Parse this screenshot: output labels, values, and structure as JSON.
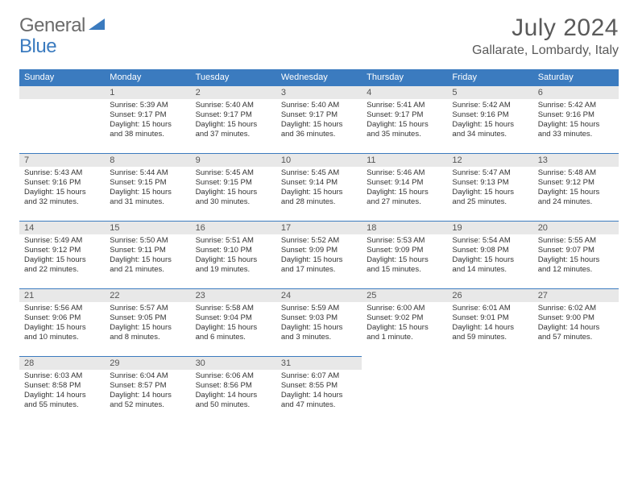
{
  "logo": {
    "general": "General",
    "blue": "Blue"
  },
  "title": "July 2024",
  "location": "Gallarate, Lombardy, Italy",
  "colors": {
    "header_bg": "#3b7bbf",
    "header_text": "#ffffff",
    "daynum_bg": "#e8e8e8",
    "daynum_border": "#3b7bbf",
    "body_text": "#333333",
    "title_text": "#5a5a5a"
  },
  "day_headers": [
    "Sunday",
    "Monday",
    "Tuesday",
    "Wednesday",
    "Thursday",
    "Friday",
    "Saturday"
  ],
  "weeks": [
    [
      null,
      {
        "n": "1",
        "sr": "Sunrise: 5:39 AM",
        "ss": "Sunset: 9:17 PM",
        "d1": "Daylight: 15 hours",
        "d2": "and 38 minutes."
      },
      {
        "n": "2",
        "sr": "Sunrise: 5:40 AM",
        "ss": "Sunset: 9:17 PM",
        "d1": "Daylight: 15 hours",
        "d2": "and 37 minutes."
      },
      {
        "n": "3",
        "sr": "Sunrise: 5:40 AM",
        "ss": "Sunset: 9:17 PM",
        "d1": "Daylight: 15 hours",
        "d2": "and 36 minutes."
      },
      {
        "n": "4",
        "sr": "Sunrise: 5:41 AM",
        "ss": "Sunset: 9:17 PM",
        "d1": "Daylight: 15 hours",
        "d2": "and 35 minutes."
      },
      {
        "n": "5",
        "sr": "Sunrise: 5:42 AM",
        "ss": "Sunset: 9:16 PM",
        "d1": "Daylight: 15 hours",
        "d2": "and 34 minutes."
      },
      {
        "n": "6",
        "sr": "Sunrise: 5:42 AM",
        "ss": "Sunset: 9:16 PM",
        "d1": "Daylight: 15 hours",
        "d2": "and 33 minutes."
      }
    ],
    [
      {
        "n": "7",
        "sr": "Sunrise: 5:43 AM",
        "ss": "Sunset: 9:16 PM",
        "d1": "Daylight: 15 hours",
        "d2": "and 32 minutes."
      },
      {
        "n": "8",
        "sr": "Sunrise: 5:44 AM",
        "ss": "Sunset: 9:15 PM",
        "d1": "Daylight: 15 hours",
        "d2": "and 31 minutes."
      },
      {
        "n": "9",
        "sr": "Sunrise: 5:45 AM",
        "ss": "Sunset: 9:15 PM",
        "d1": "Daylight: 15 hours",
        "d2": "and 30 minutes."
      },
      {
        "n": "10",
        "sr": "Sunrise: 5:45 AM",
        "ss": "Sunset: 9:14 PM",
        "d1": "Daylight: 15 hours",
        "d2": "and 28 minutes."
      },
      {
        "n": "11",
        "sr": "Sunrise: 5:46 AM",
        "ss": "Sunset: 9:14 PM",
        "d1": "Daylight: 15 hours",
        "d2": "and 27 minutes."
      },
      {
        "n": "12",
        "sr": "Sunrise: 5:47 AM",
        "ss": "Sunset: 9:13 PM",
        "d1": "Daylight: 15 hours",
        "d2": "and 25 minutes."
      },
      {
        "n": "13",
        "sr": "Sunrise: 5:48 AM",
        "ss": "Sunset: 9:12 PM",
        "d1": "Daylight: 15 hours",
        "d2": "and 24 minutes."
      }
    ],
    [
      {
        "n": "14",
        "sr": "Sunrise: 5:49 AM",
        "ss": "Sunset: 9:12 PM",
        "d1": "Daylight: 15 hours",
        "d2": "and 22 minutes."
      },
      {
        "n": "15",
        "sr": "Sunrise: 5:50 AM",
        "ss": "Sunset: 9:11 PM",
        "d1": "Daylight: 15 hours",
        "d2": "and 21 minutes."
      },
      {
        "n": "16",
        "sr": "Sunrise: 5:51 AM",
        "ss": "Sunset: 9:10 PM",
        "d1": "Daylight: 15 hours",
        "d2": "and 19 minutes."
      },
      {
        "n": "17",
        "sr": "Sunrise: 5:52 AM",
        "ss": "Sunset: 9:09 PM",
        "d1": "Daylight: 15 hours",
        "d2": "and 17 minutes."
      },
      {
        "n": "18",
        "sr": "Sunrise: 5:53 AM",
        "ss": "Sunset: 9:09 PM",
        "d1": "Daylight: 15 hours",
        "d2": "and 15 minutes."
      },
      {
        "n": "19",
        "sr": "Sunrise: 5:54 AM",
        "ss": "Sunset: 9:08 PM",
        "d1": "Daylight: 15 hours",
        "d2": "and 14 minutes."
      },
      {
        "n": "20",
        "sr": "Sunrise: 5:55 AM",
        "ss": "Sunset: 9:07 PM",
        "d1": "Daylight: 15 hours",
        "d2": "and 12 minutes."
      }
    ],
    [
      {
        "n": "21",
        "sr": "Sunrise: 5:56 AM",
        "ss": "Sunset: 9:06 PM",
        "d1": "Daylight: 15 hours",
        "d2": "and 10 minutes."
      },
      {
        "n": "22",
        "sr": "Sunrise: 5:57 AM",
        "ss": "Sunset: 9:05 PM",
        "d1": "Daylight: 15 hours",
        "d2": "and 8 minutes."
      },
      {
        "n": "23",
        "sr": "Sunrise: 5:58 AM",
        "ss": "Sunset: 9:04 PM",
        "d1": "Daylight: 15 hours",
        "d2": "and 6 minutes."
      },
      {
        "n": "24",
        "sr": "Sunrise: 5:59 AM",
        "ss": "Sunset: 9:03 PM",
        "d1": "Daylight: 15 hours",
        "d2": "and 3 minutes."
      },
      {
        "n": "25",
        "sr": "Sunrise: 6:00 AM",
        "ss": "Sunset: 9:02 PM",
        "d1": "Daylight: 15 hours",
        "d2": "and 1 minute."
      },
      {
        "n": "26",
        "sr": "Sunrise: 6:01 AM",
        "ss": "Sunset: 9:01 PM",
        "d1": "Daylight: 14 hours",
        "d2": "and 59 minutes."
      },
      {
        "n": "27",
        "sr": "Sunrise: 6:02 AM",
        "ss": "Sunset: 9:00 PM",
        "d1": "Daylight: 14 hours",
        "d2": "and 57 minutes."
      }
    ],
    [
      {
        "n": "28",
        "sr": "Sunrise: 6:03 AM",
        "ss": "Sunset: 8:58 PM",
        "d1": "Daylight: 14 hours",
        "d2": "and 55 minutes."
      },
      {
        "n": "29",
        "sr": "Sunrise: 6:04 AM",
        "ss": "Sunset: 8:57 PM",
        "d1": "Daylight: 14 hours",
        "d2": "and 52 minutes."
      },
      {
        "n": "30",
        "sr": "Sunrise: 6:06 AM",
        "ss": "Sunset: 8:56 PM",
        "d1": "Daylight: 14 hours",
        "d2": "and 50 minutes."
      },
      {
        "n": "31",
        "sr": "Sunrise: 6:07 AM",
        "ss": "Sunset: 8:55 PM",
        "d1": "Daylight: 14 hours",
        "d2": "and 47 minutes."
      },
      null,
      null,
      null
    ]
  ]
}
